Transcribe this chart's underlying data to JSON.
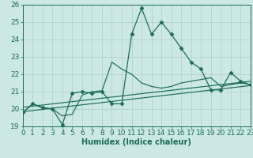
{
  "xlabel": "Humidex (Indice chaleur)",
  "background_color": "#cce8e4",
  "grid_color": "#aacfcb",
  "line_color": "#1a6b5a",
  "xlim": [
    0,
    23
  ],
  "ylim": [
    19,
    26
  ],
  "yticks": [
    19,
    20,
    21,
    22,
    23,
    24,
    25,
    26
  ],
  "xticks": [
    0,
    1,
    2,
    3,
    4,
    5,
    6,
    7,
    8,
    9,
    10,
    11,
    12,
    13,
    14,
    15,
    16,
    17,
    18,
    19,
    20,
    21,
    22,
    23
  ],
  "series": [
    {
      "x": [
        0,
        1,
        2,
        3,
        4,
        5,
        6,
        7,
        8,
        9,
        10,
        11,
        12,
        13,
        14,
        15,
        16,
        17,
        18,
        19,
        20,
        21,
        22,
        23
      ],
      "y": [
        19.8,
        20.3,
        20.1,
        20.0,
        19.1,
        20.9,
        21.0,
        20.9,
        21.0,
        20.3,
        20.3,
        24.3,
        25.8,
        24.3,
        25.0,
        24.3,
        23.5,
        22.7,
        22.3,
        21.1,
        21.1,
        22.1,
        21.6,
        21.4
      ],
      "has_markers": true
    },
    {
      "x": [
        0,
        1,
        2,
        3,
        4,
        5,
        6,
        7,
        8,
        9,
        10,
        11,
        12,
        13,
        14,
        15,
        16,
        17,
        18,
        19,
        20,
        21,
        22,
        23
      ],
      "y": [
        19.8,
        20.3,
        20.05,
        20.0,
        19.6,
        19.7,
        20.8,
        21.0,
        21.05,
        22.7,
        22.3,
        22.0,
        21.5,
        21.3,
        21.2,
        21.3,
        21.5,
        21.6,
        21.7,
        21.8,
        21.3,
        21.4,
        21.5,
        21.4
      ],
      "has_markers": false
    },
    {
      "x": [
        0,
        23
      ],
      "y": [
        19.85,
        21.35
      ],
      "has_markers": false
    },
    {
      "x": [
        0,
        23
      ],
      "y": [
        20.1,
        21.6
      ],
      "has_markers": false
    }
  ],
  "font_size_xlabel": 7,
  "font_size_ticks": 6.5
}
